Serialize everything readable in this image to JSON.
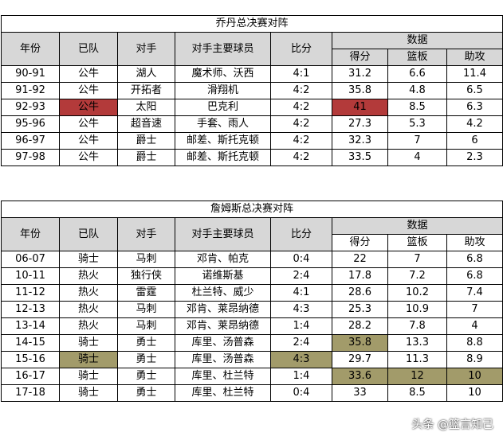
{
  "table1": {
    "title": "乔丹总决赛对阵",
    "headers": {
      "year": "年份",
      "team": "已队",
      "opponent": "对手",
      "players": "对手主要球员",
      "score": "比分",
      "stats": "数据",
      "pts": "得分",
      "reb": "篮板",
      "ast": "助攻"
    },
    "rows": [
      {
        "year": "90-91",
        "team": "公牛",
        "opponent": "湖人",
        "players": "魔术师、沃西",
        "score": "4:1",
        "pts": "31.2",
        "reb": "6.6",
        "ast": "11.4"
      },
      {
        "year": "91-92",
        "team": "公牛",
        "opponent": "开拓者",
        "players": "滑翔机",
        "score": "4:2",
        "pts": "35.8",
        "reb": "4.8",
        "ast": "6.5"
      },
      {
        "year": "92-93",
        "team": "公牛",
        "opponent": "太阳",
        "players": "巴克利",
        "score": "4:2",
        "pts": "41",
        "reb": "8.5",
        "ast": "6.3"
      },
      {
        "year": "95-96",
        "team": "公牛",
        "opponent": "超音速",
        "players": "手套、雨人",
        "score": "4:2",
        "pts": "27.3",
        "reb": "5.3",
        "ast": "4.2"
      },
      {
        "year": "96-97",
        "team": "公牛",
        "opponent": "爵士",
        "players": "邮差、斯托克顿",
        "score": "4:2",
        "pts": "32.3",
        "reb": "7",
        "ast": "6"
      },
      {
        "year": "97-98",
        "team": "公牛",
        "opponent": "爵士",
        "players": "邮差、斯托克顿",
        "score": "4:2",
        "pts": "33.5",
        "reb": "4",
        "ast": "2.3"
      }
    ]
  },
  "table2": {
    "title": "詹姆斯总决赛对阵",
    "headers": {
      "year": "年份",
      "team": "已队",
      "opponent": "对手",
      "players": "对手主要球员",
      "score": "比分",
      "stats": "数据",
      "pts": "得分",
      "reb": "篮板",
      "ast": "助攻"
    },
    "rows": [
      {
        "year": "06-07",
        "team": "骑士",
        "opponent": "马刺",
        "players": "邓肯、帕克",
        "score": "0:4",
        "pts": "22",
        "reb": "7",
        "ast": "6.8"
      },
      {
        "year": "10-11",
        "team": "热火",
        "opponent": "独行侠",
        "players": "诺维斯基",
        "score": "2:4",
        "pts": "17.8",
        "reb": "7.2",
        "ast": "6.8"
      },
      {
        "year": "11-12",
        "team": "热火",
        "opponent": "雷霆",
        "players": "杜兰特、威少",
        "score": "4:1",
        "pts": "28.6",
        "reb": "10.2",
        "ast": "7.4"
      },
      {
        "year": "12-13",
        "team": "热火",
        "opponent": "马刺",
        "players": "邓肯、莱昂纳德",
        "score": "4:3",
        "pts": "25.3",
        "reb": "10.9",
        "ast": "7"
      },
      {
        "year": "13-14",
        "team": "热火",
        "opponent": "马刺",
        "players": "邓肯、莱昂纳德",
        "score": "1:4",
        "pts": "28.2",
        "reb": "7.8",
        "ast": "4"
      },
      {
        "year": "14-15",
        "team": "骑士",
        "opponent": "勇士",
        "players": "库里、汤普森",
        "score": "2:4",
        "pts": "35.8",
        "reb": "13.3",
        "ast": "8.8"
      },
      {
        "year": "15-16",
        "team": "骑士",
        "opponent": "勇士",
        "players": "库里、汤普森",
        "score": "4:3",
        "pts": "29.7",
        "reb": "11.3",
        "ast": "8.9"
      },
      {
        "year": "16-17",
        "team": "骑士",
        "opponent": "勇士",
        "players": "库里、杜兰特",
        "score": "1:4",
        "pts": "33.6",
        "reb": "12",
        "ast": "10"
      },
      {
        "year": "17-18",
        "team": "骑士",
        "opponent": "勇士",
        "players": "库里、杜兰特",
        "score": "0:4",
        "pts": "33",
        "reb": "8.5",
        "ast": "10"
      }
    ]
  },
  "highlight_colors": {
    "red": "#b33a3a",
    "gold": "#a29b6a",
    "header_bg": "#d7d7d7"
  },
  "footer": {
    "watermark": "头条 @篮言知己"
  }
}
